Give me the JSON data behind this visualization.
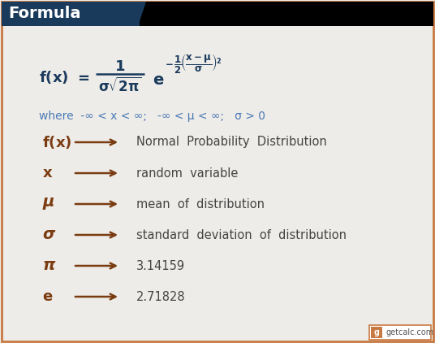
{
  "title": "Formula",
  "bg_color": "#eeece8",
  "header_bg": "#1a3a5c",
  "black_bar": "#000000",
  "header_text_color": "#ffffff",
  "border_color": "#c87941",
  "formula_color": "#1a3a5c",
  "symbol_color": "#7a3b10",
  "desc_color": "#444444",
  "where_color": "#4a7ab5",
  "arrow_color": "#7a3b10",
  "rows": [
    {
      "symbol": "f(x)",
      "arrow": true,
      "desc": "Normal  Probability  Distribution"
    },
    {
      "symbol": "x",
      "arrow": true,
      "desc": "random  variable"
    },
    {
      "symbol": "μ",
      "arrow": true,
      "desc": "mean  of  distribution"
    },
    {
      "symbol": "σ",
      "arrow": true,
      "desc": "standard  deviation  of  distribution"
    },
    {
      "symbol": "π",
      "arrow": true,
      "desc": "3.14159"
    },
    {
      "symbol": "e",
      "arrow": true,
      "desc": "2.71828"
    }
  ],
  "where_text": "where  -∞ < x < ∞;   -∞ < μ < ∞;   σ > 0"
}
